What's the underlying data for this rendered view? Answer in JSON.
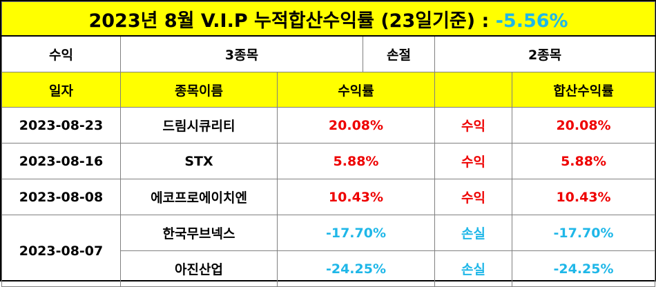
{
  "title": {
    "text": "2023년 8월 V.I.P 누적합산수익률 (23일기준) : ",
    "result": "-5.56%"
  },
  "summary": {
    "profit_label": "수익",
    "profit_count": "3종목",
    "loss_label": "손절",
    "loss_count": "2종목"
  },
  "headers": {
    "date": "일자",
    "stock_name": "종목이름",
    "return_rate": "수익률",
    "status": "",
    "combined_return": "합산수익률"
  },
  "rows": [
    {
      "date": "2023-08-23",
      "name": "드림시큐리티",
      "rate": "20.08%",
      "status": "수익",
      "combined": "20.08%"
    },
    {
      "date": "2023-08-16",
      "name": "STX",
      "rate": "5.88%",
      "status": "수익",
      "combined": "5.88%"
    },
    {
      "date": "2023-08-08",
      "name": "에코프로에이치엔",
      "rate": "10.43%",
      "status": "수익",
      "combined": "10.43%"
    },
    {
      "date": "2023-08-07",
      "name": "한국무브넥스",
      "rate": "-17.70%",
      "status": "손실",
      "combined": "-17.70%"
    },
    {
      "date": "",
      "name": "아진산업",
      "rate": "-24.25%",
      "status": "손실",
      "combined": "-24.25%"
    }
  ],
  "colors": {
    "header_background": "#ffff00",
    "profit_text": "#ee0000",
    "loss_text": "#1fb7e8",
    "border": "#7f7f7f"
  }
}
